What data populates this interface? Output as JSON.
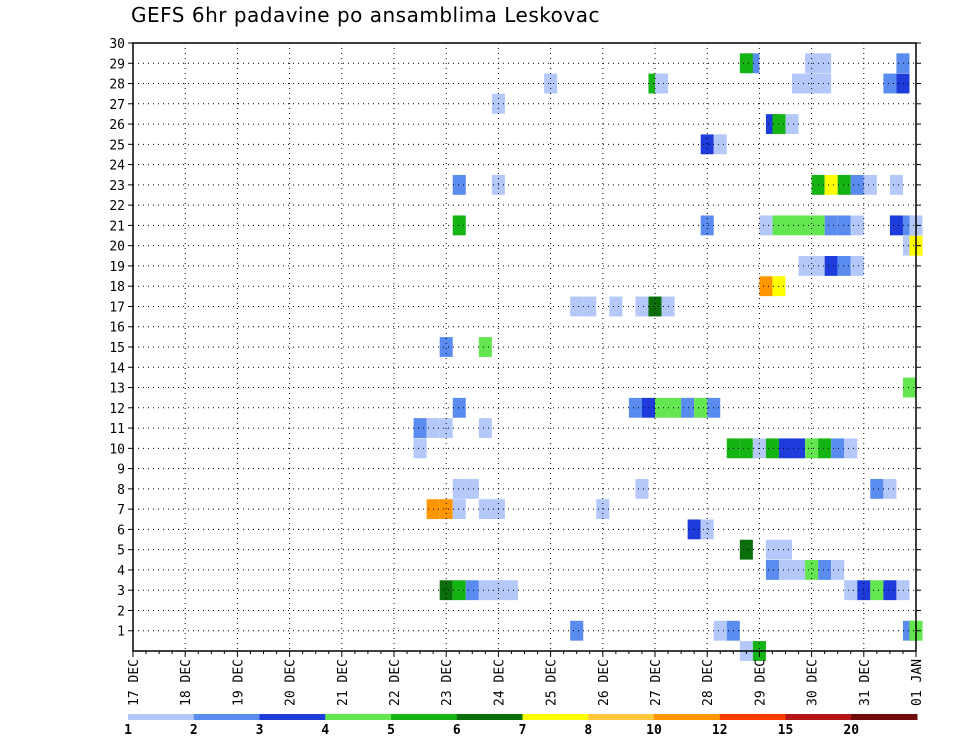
{
  "chart_data": {
    "type": "heatmap",
    "title": "GEFS 6hr padavine po ansamblima Leskovac",
    "xlabel": "",
    "ylabel": "",
    "x_tick_labels": [
      "17 DEC",
      "18 DEC",
      "19 DEC",
      "20 DEC",
      "21 DEC",
      "22 DEC",
      "23 DEC",
      "24 DEC",
      "25 DEC",
      "26 DEC",
      "27 DEC",
      "28 DEC",
      "29 DEC",
      "30 DEC",
      "31 DEC",
      "01 JAN"
    ],
    "x_range_steps": [
      0,
      60
    ],
    "steps_per_day": 4,
    "y_tick_labels": [
      "1",
      "2",
      "3",
      "4",
      "5",
      "6",
      "7",
      "8",
      "9",
      "10",
      "11",
      "12",
      "13",
      "14",
      "15",
      "16",
      "17",
      "18",
      "19",
      "20",
      "21",
      "22",
      "23",
      "24",
      "25",
      "26",
      "27",
      "28",
      "29",
      "30"
    ],
    "y_range": [
      0,
      30
    ],
    "grid": true,
    "colorbar": {
      "labels": [
        "1",
        "2",
        "3",
        "4",
        "5",
        "6",
        "7",
        "8",
        "10",
        "12",
        "15",
        "20"
      ],
      "colors": [
        "#b4c8fa",
        "#5a8cf0",
        "#1e3cdc",
        "#64e650",
        "#14b414",
        "#0a6e0a",
        "#ffff00",
        "#ffc83c",
        "#ff9600",
        "#ff3c00",
        "#b41414",
        "#6e0a0a"
      ]
    },
    "cells": [
      {
        "x": 47.5,
        "y": 29,
        "color": 1
      },
      {
        "x": 47,
        "y": 29,
        "color": 4
      },
      {
        "x": 52,
        "y": 29,
        "color": 0
      },
      {
        "x": 53,
        "y": 29,
        "color": 0
      },
      {
        "x": 59,
        "y": 29,
        "color": 1
      },
      {
        "x": 32,
        "y": 28,
        "color": 0
      },
      {
        "x": 40,
        "y": 28,
        "color": 4
      },
      {
        "x": 40.5,
        "y": 28,
        "color": 0
      },
      {
        "x": 51,
        "y": 28,
        "color": 0
      },
      {
        "x": 52,
        "y": 28,
        "color": 0
      },
      {
        "x": 53,
        "y": 28,
        "color": 0
      },
      {
        "x": 58,
        "y": 28,
        "color": 1
      },
      {
        "x": 59,
        "y": 28,
        "color": 2
      },
      {
        "x": 28,
        "y": 27,
        "color": 0
      },
      {
        "x": 49,
        "y": 26,
        "color": 2
      },
      {
        "x": 49.5,
        "y": 26,
        "color": 4
      },
      {
        "x": 50.5,
        "y": 26,
        "color": 0
      },
      {
        "x": 44,
        "y": 25,
        "color": 2
      },
      {
        "x": 45,
        "y": 25,
        "color": 0
      },
      {
        "x": 25,
        "y": 23,
        "color": 1
      },
      {
        "x": 28,
        "y": 23,
        "color": 0
      },
      {
        "x": 52.5,
        "y": 23,
        "color": 4
      },
      {
        "x": 53.5,
        "y": 23,
        "color": 6
      },
      {
        "x": 54.5,
        "y": 23,
        "color": 4
      },
      {
        "x": 55.5,
        "y": 23,
        "color": 1
      },
      {
        "x": 56.5,
        "y": 23,
        "color": 0
      },
      {
        "x": 58.5,
        "y": 23,
        "color": 0
      },
      {
        "x": 25,
        "y": 21,
        "color": 4
      },
      {
        "x": 44,
        "y": 21,
        "color": 1
      },
      {
        "x": 48.5,
        "y": 21,
        "color": 0
      },
      {
        "x": 49.5,
        "y": 21,
        "color": 3
      },
      {
        "x": 50.5,
        "y": 21,
        "color": 3
      },
      {
        "x": 51.5,
        "y": 21,
        "color": 3
      },
      {
        "x": 52.5,
        "y": 21,
        "color": 3
      },
      {
        "x": 53.5,
        "y": 21,
        "color": 1
      },
      {
        "x": 54.5,
        "y": 21,
        "color": 1
      },
      {
        "x": 55.5,
        "y": 21,
        "color": 0
      },
      {
        "x": 58.5,
        "y": 21,
        "color": 2
      },
      {
        "x": 59.5,
        "y": 21,
        "color": 1
      },
      {
        "x": 60,
        "y": 21,
        "color": 0
      },
      {
        "x": 59.5,
        "y": 20,
        "color": 0
      },
      {
        "x": 60,
        "y": 20,
        "color": 6
      },
      {
        "x": 51.5,
        "y": 19,
        "color": 0
      },
      {
        "x": 52.5,
        "y": 19,
        "color": 0
      },
      {
        "x": 53.5,
        "y": 19,
        "color": 2
      },
      {
        "x": 54.5,
        "y": 19,
        "color": 1
      },
      {
        "x": 55.5,
        "y": 19,
        "color": 0
      },
      {
        "x": 48.5,
        "y": 18,
        "color": 8
      },
      {
        "x": 49.5,
        "y": 18,
        "color": 6
      },
      {
        "x": 34,
        "y": 17,
        "color": 0
      },
      {
        "x": 35,
        "y": 17,
        "color": 0
      },
      {
        "x": 37,
        "y": 17,
        "color": 0
      },
      {
        "x": 39,
        "y": 17,
        "color": 0
      },
      {
        "x": 40,
        "y": 17,
        "color": 5
      },
      {
        "x": 41,
        "y": 17,
        "color": 0
      },
      {
        "x": 24,
        "y": 15,
        "color": 1
      },
      {
        "x": 27,
        "y": 15,
        "color": 3
      },
      {
        "x": 59.5,
        "y": 13,
        "color": 3
      },
      {
        "x": 25,
        "y": 12,
        "color": 1
      },
      {
        "x": 38.5,
        "y": 12,
        "color": 1
      },
      {
        "x": 39.5,
        "y": 12,
        "color": 2
      },
      {
        "x": 40.5,
        "y": 12,
        "color": 3
      },
      {
        "x": 41.5,
        "y": 12,
        "color": 3
      },
      {
        "x": 42.5,
        "y": 12,
        "color": 1
      },
      {
        "x": 43.5,
        "y": 12,
        "color": 3
      },
      {
        "x": 44.5,
        "y": 12,
        "color": 1
      },
      {
        "x": 22,
        "y": 11,
        "color": 1
      },
      {
        "x": 23,
        "y": 11,
        "color": 0
      },
      {
        "x": 24,
        "y": 11,
        "color": 0
      },
      {
        "x": 27,
        "y": 11,
        "color": 0
      },
      {
        "x": 22,
        "y": 10,
        "color": 0
      },
      {
        "x": 46,
        "y": 10,
        "color": 4
      },
      {
        "x": 47,
        "y": 10,
        "color": 4
      },
      {
        "x": 48,
        "y": 10,
        "color": 0
      },
      {
        "x": 49,
        "y": 10,
        "color": 4
      },
      {
        "x": 50,
        "y": 10,
        "color": 2
      },
      {
        "x": 51,
        "y": 10,
        "color": 2
      },
      {
        "x": 52,
        "y": 10,
        "color": 3
      },
      {
        "x": 53,
        "y": 10,
        "color": 4
      },
      {
        "x": 54,
        "y": 10,
        "color": 1
      },
      {
        "x": 55,
        "y": 10,
        "color": 0
      },
      {
        "x": 25,
        "y": 8,
        "color": 0
      },
      {
        "x": 26,
        "y": 8,
        "color": 0
      },
      {
        "x": 39,
        "y": 8,
        "color": 0
      },
      {
        "x": 57,
        "y": 8,
        "color": 1
      },
      {
        "x": 58,
        "y": 8,
        "color": 0
      },
      {
        "x": 23,
        "y": 7,
        "color": 8
      },
      {
        "x": 24,
        "y": 7,
        "color": 8
      },
      {
        "x": 25,
        "y": 7,
        "color": 0
      },
      {
        "x": 27,
        "y": 7,
        "color": 0
      },
      {
        "x": 28,
        "y": 7,
        "color": 0
      },
      {
        "x": 36,
        "y": 7,
        "color": 0
      },
      {
        "x": 43,
        "y": 6,
        "color": 2
      },
      {
        "x": 44,
        "y": 6,
        "color": 0
      },
      {
        "x": 47,
        "y": 5,
        "color": 5
      },
      {
        "x": 49,
        "y": 5,
        "color": 0
      },
      {
        "x": 50,
        "y": 5,
        "color": 0
      },
      {
        "x": 49,
        "y": 4,
        "color": 1
      },
      {
        "x": 50,
        "y": 4,
        "color": 0
      },
      {
        "x": 51,
        "y": 4,
        "color": 0
      },
      {
        "x": 52,
        "y": 4,
        "color": 3
      },
      {
        "x": 53,
        "y": 4,
        "color": 1
      },
      {
        "x": 54,
        "y": 4,
        "color": 0
      },
      {
        "x": 24,
        "y": 3,
        "color": 5
      },
      {
        "x": 25,
        "y": 3,
        "color": 4
      },
      {
        "x": 26,
        "y": 3,
        "color": 1
      },
      {
        "x": 27,
        "y": 3,
        "color": 0
      },
      {
        "x": 28,
        "y": 3,
        "color": 0
      },
      {
        "x": 29,
        "y": 3,
        "color": 0
      },
      {
        "x": 55,
        "y": 3,
        "color": 0
      },
      {
        "x": 56,
        "y": 3,
        "color": 2
      },
      {
        "x": 57,
        "y": 3,
        "color": 3
      },
      {
        "x": 58,
        "y": 3,
        "color": 2
      },
      {
        "x": 59,
        "y": 3,
        "color": 0
      },
      {
        "x": 34,
        "y": 1,
        "color": 1
      },
      {
        "x": 45,
        "y": 1,
        "color": 0
      },
      {
        "x": 46,
        "y": 1,
        "color": 1
      },
      {
        "x": 59.5,
        "y": 1,
        "color": 1
      },
      {
        "x": 60,
        "y": 1,
        "color": 3
      },
      {
        "x": 47,
        "y": 0,
        "color": 0
      },
      {
        "x": 48,
        "y": 0,
        "color": 4
      }
    ]
  }
}
